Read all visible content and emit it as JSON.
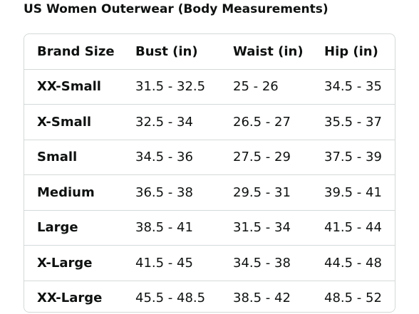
{
  "header": {
    "title": "US Women Outerwear (Body Measurements)"
  },
  "table": {
    "headers": [
      "Brand Size",
      "Bust (in)",
      "Waist (in)",
      "Hip (in)"
    ],
    "rows": [
      [
        "XX-Small",
        "31.5 - 32.5",
        "25 - 26",
        "34.5 - 35"
      ],
      [
        "X-Small",
        "32.5 - 34",
        "26.5 - 27",
        "35.5 - 37"
      ],
      [
        "Small",
        "34.5 - 36",
        "27.5 - 29",
        "37.5 - 39"
      ],
      [
        "Medium",
        "36.5 - 38",
        "29.5 - 31",
        "39.5 - 41"
      ],
      [
        "Large",
        "38.5 - 41",
        "31.5 - 34",
        "41.5 - 44"
      ],
      [
        "X-Large",
        "41.5 - 45",
        "34.5 - 38",
        "44.5 - 48"
      ],
      [
        "XX-Large",
        "45.5 - 48.5",
        "38.5 - 42",
        "48.5 - 52"
      ]
    ]
  }
}
